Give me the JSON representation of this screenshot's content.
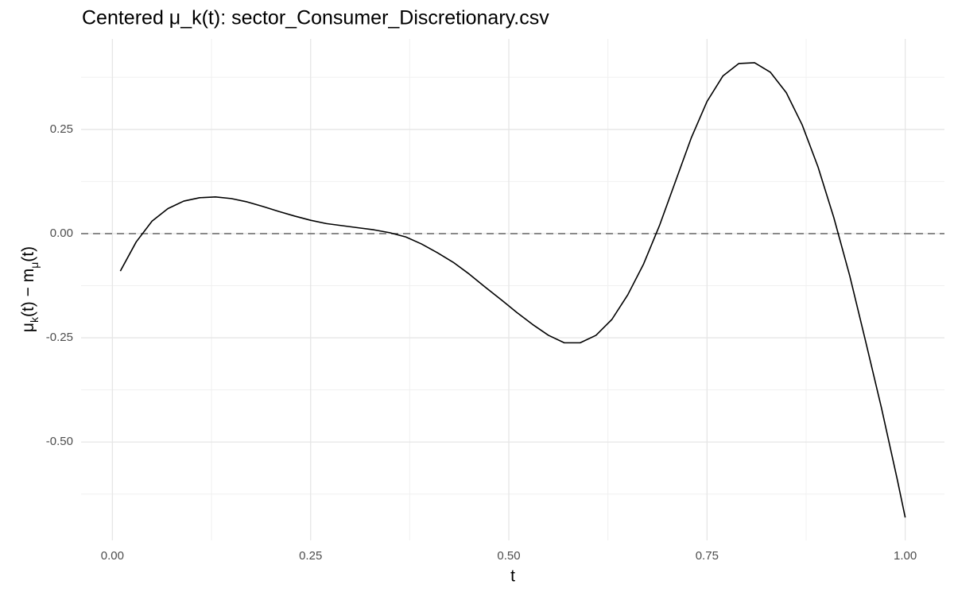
{
  "chart_data": {
    "type": "line",
    "title": "Centered μ_k(t): sector_Consumer_Discretionary.csv",
    "xlabel": "t",
    "ylabel": [
      "μ",
      "k",
      "(t) − m",
      "μ",
      "(t)"
    ],
    "x": [
      0.01,
      0.03,
      0.05,
      0.07,
      0.09,
      0.11,
      0.13,
      0.15,
      0.17,
      0.19,
      0.21,
      0.23,
      0.25,
      0.27,
      0.29,
      0.31,
      0.33,
      0.35,
      0.37,
      0.39,
      0.41,
      0.43,
      0.45,
      0.47,
      0.49,
      0.51,
      0.53,
      0.55,
      0.57,
      0.59,
      0.61,
      0.63,
      0.65,
      0.67,
      0.69,
      0.71,
      0.73,
      0.75,
      0.77,
      0.79,
      0.81,
      0.83,
      0.85,
      0.87,
      0.89,
      0.91,
      0.93,
      0.95,
      0.97,
      0.99,
      1.0
    ],
    "series": [
      {
        "color": "#000000",
        "values": [
          -0.09,
          -0.02,
          0.03,
          0.06,
          0.078,
          0.086,
          0.088,
          0.084,
          0.076,
          0.065,
          0.053,
          0.042,
          0.032,
          0.024,
          0.019,
          0.014,
          0.009,
          0.002,
          -0.008,
          -0.025,
          -0.046,
          -0.069,
          -0.097,
          -0.128,
          -0.158,
          -0.189,
          -0.218,
          -0.244,
          -0.262,
          -0.262,
          -0.244,
          -0.206,
          -0.147,
          -0.073,
          0.019,
          0.124,
          0.229,
          0.317,
          0.378,
          0.408,
          0.41,
          0.387,
          0.338,
          0.261,
          0.16,
          0.038,
          -0.101,
          -0.258,
          -0.418,
          -0.59,
          -0.681
        ]
      }
    ],
    "hline": 0,
    "xlim": [
      -0.0395,
      1.0495
    ],
    "ylim": [
      -0.736,
      0.467
    ],
    "xticks": [
      {
        "value": 0,
        "label": "0.00"
      },
      {
        "value": 0.25,
        "label": "0.25"
      },
      {
        "value": 0.5,
        "label": "0.50"
      },
      {
        "value": 0.75,
        "label": "0.75"
      },
      {
        "value": 1,
        "label": "1.00"
      }
    ],
    "yticks": [
      {
        "value": -0.5,
        "label": "-0.50"
      },
      {
        "value": -0.25,
        "label": "-0.25"
      },
      {
        "value": 0,
        "label": "0.00"
      },
      {
        "value": 0.25,
        "label": "0.25"
      }
    ],
    "minor_xticks": [
      0.125,
      0.375,
      0.625,
      0.875
    ],
    "minor_yticks": [
      -0.625,
      -0.375,
      -0.125,
      0.125,
      0.375
    ],
    "grid": true
  }
}
